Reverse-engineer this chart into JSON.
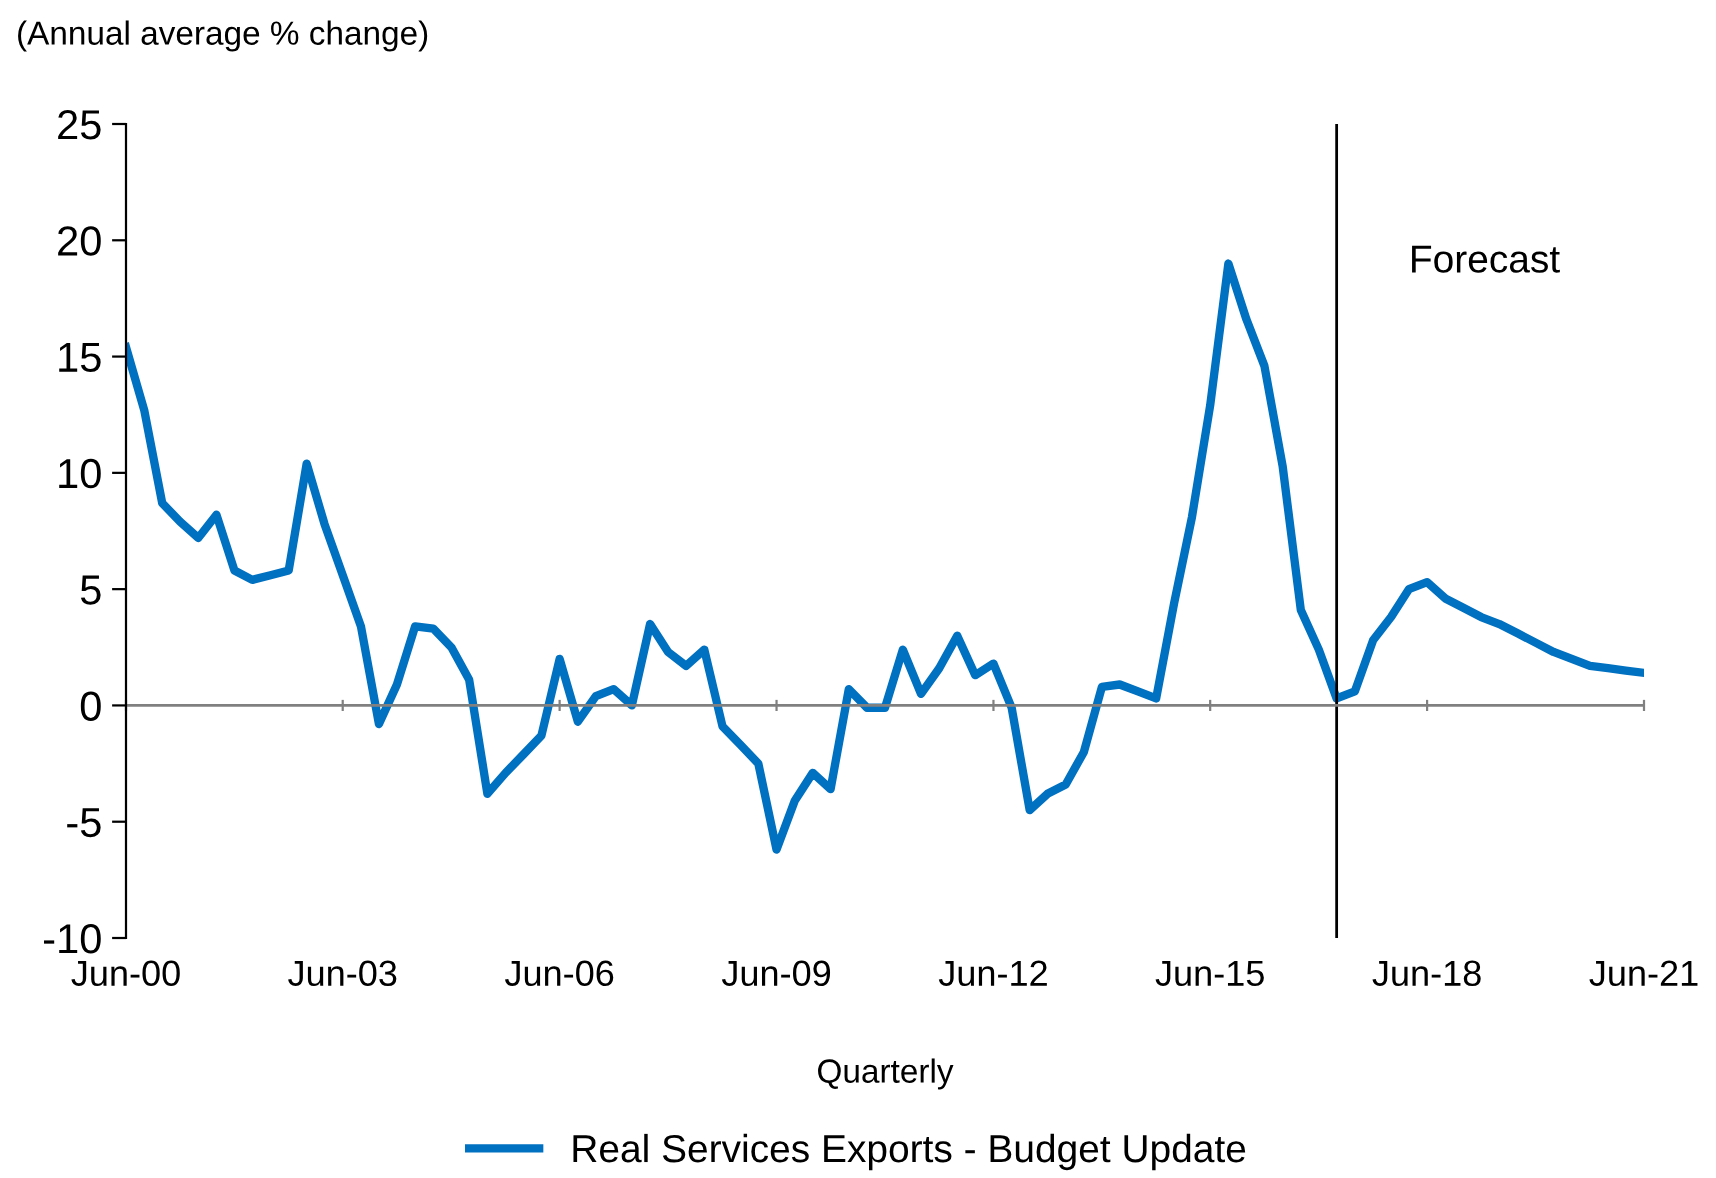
{
  "chart_data": {
    "type": "line",
    "ylabel": "(Annual average % change)",
    "xlabel": "Quarterly",
    "x": [
      "2000-06",
      "2000-09",
      "2000-12",
      "2001-03",
      "2001-06",
      "2001-09",
      "2001-12",
      "2002-03",
      "2002-06",
      "2002-09",
      "2002-12",
      "2003-03",
      "2003-06",
      "2003-09",
      "2003-12",
      "2004-03",
      "2004-06",
      "2004-09",
      "2004-12",
      "2005-03",
      "2005-06",
      "2005-09",
      "2005-12",
      "2006-03",
      "2006-06",
      "2006-09",
      "2006-12",
      "2007-03",
      "2007-06",
      "2007-09",
      "2007-12",
      "2008-03",
      "2008-06",
      "2008-09",
      "2008-12",
      "2009-03",
      "2009-06",
      "2009-09",
      "2009-12",
      "2010-03",
      "2010-06",
      "2010-09",
      "2010-12",
      "2011-03",
      "2011-06",
      "2011-09",
      "2011-12",
      "2012-03",
      "2012-06",
      "2012-09",
      "2012-12",
      "2013-03",
      "2013-06",
      "2013-09",
      "2013-12",
      "2014-03",
      "2014-06",
      "2014-09",
      "2014-12",
      "2015-03",
      "2015-06",
      "2015-09",
      "2015-12",
      "2016-03",
      "2016-06",
      "2016-09",
      "2016-12",
      "2017-03",
      "2017-06",
      "2017-09",
      "2017-12",
      "2018-03",
      "2018-06",
      "2018-09",
      "2018-12",
      "2019-03",
      "2019-06",
      "2019-09",
      "2019-12",
      "2020-03",
      "2020-06",
      "2020-09",
      "2020-12",
      "2021-03",
      "2021-06"
    ],
    "series": [
      {
        "name": "Real Services Exports - Budget Update",
        "color": "#0070c0",
        "values": [
          15.4,
          12.7,
          8.7,
          7.9,
          7.2,
          8.2,
          5.8,
          5.4,
          5.6,
          5.8,
          10.4,
          7.8,
          5.6,
          3.4,
          -0.8,
          0.9,
          3.4,
          3.3,
          2.5,
          1.1,
          -3.8,
          -2.9,
          -2.1,
          -1.3,
          2.0,
          -0.7,
          0.4,
          0.7,
          0.0,
          3.5,
          2.3,
          1.7,
          2.4,
          -0.9,
          -1.7,
          -2.5,
          -6.2,
          -4.1,
          -2.9,
          -3.6,
          0.7,
          -0.1,
          -0.1,
          2.4,
          0.5,
          1.6,
          3.0,
          1.3,
          1.8,
          -0.1,
          -4.5,
          -3.8,
          -3.4,
          -2.0,
          0.8,
          0.9,
          0.6,
          0.3,
          4.4,
          8.1,
          12.9,
          19.0,
          16.6,
          14.6,
          10.3,
          4.1,
          2.4,
          0.3,
          0.6,
          2.8,
          3.8,
          5.0,
          5.3,
          4.6,
          4.2,
          3.8,
          3.5,
          3.1,
          2.7,
          2.3,
          2.0,
          1.7,
          1.6,
          1.5,
          1.4
        ]
      }
    ],
    "xlim": [
      "2000-06",
      "2021-06"
    ],
    "xticks": [
      {
        "value": "2000-06",
        "label": "Jun-00"
      },
      {
        "value": "2003-06",
        "label": "Jun-03"
      },
      {
        "value": "2006-06",
        "label": "Jun-06"
      },
      {
        "value": "2009-06",
        "label": "Jun-09"
      },
      {
        "value": "2012-06",
        "label": "Jun-12"
      },
      {
        "value": "2015-06",
        "label": "Jun-15"
      },
      {
        "value": "2018-06",
        "label": "Jun-18"
      },
      {
        "value": "2021-06",
        "label": "Jun-21"
      }
    ],
    "ylim": [
      -10,
      25
    ],
    "yticks": [
      -10,
      -5,
      0,
      5,
      10,
      15,
      20,
      25
    ],
    "ref_lines": [
      {
        "axis": "x",
        "value": "2017-03",
        "label": "Forecast",
        "color": "#000000"
      },
      {
        "axis": "y",
        "value": 0,
        "color": "#808080"
      }
    ],
    "grid": false,
    "legend": "bottom",
    "marker": "none",
    "line_style": "solid"
  }
}
